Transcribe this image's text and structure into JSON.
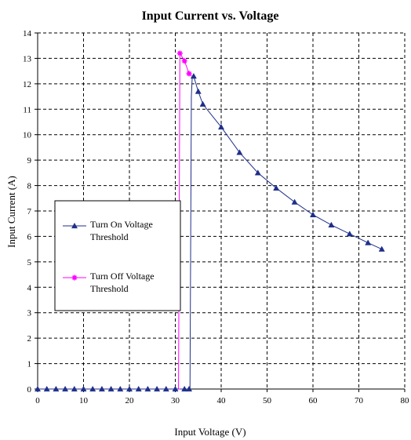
{
  "chart_data": {
    "type": "line",
    "title": "Input Current vs. Voltage",
    "xlabel": "Input Voltage (V)",
    "ylabel": "Input Current (A)",
    "xlim": [
      0,
      80
    ],
    "ylim": [
      0,
      14
    ],
    "x_ticks": [
      0,
      10,
      20,
      30,
      40,
      50,
      60,
      70,
      80
    ],
    "y_ticks": [
      0,
      1,
      2,
      3,
      4,
      5,
      6,
      7,
      8,
      9,
      10,
      11,
      12,
      13,
      14
    ],
    "grid": true,
    "legend_position": "left-middle",
    "series": [
      {
        "name": "Turn On Voltage Threshold",
        "legend_lines": [
          "Turn On Voltage",
          "Threshold"
        ],
        "color": "#1f2f8a",
        "marker": "triangle",
        "x": [
          0,
          2,
          4,
          6,
          8,
          10,
          12,
          14,
          16,
          18,
          20,
          22,
          24,
          26,
          28,
          30,
          31,
          32,
          33,
          33.2,
          33.5,
          33.7,
          34,
          35,
          36,
          40,
          44,
          48,
          52,
          56,
          60,
          64,
          68,
          72,
          75
        ],
        "y": [
          0,
          0,
          0,
          0,
          0,
          0,
          0,
          0,
          0,
          0,
          0,
          0,
          0,
          0,
          0,
          0,
          0,
          0,
          0,
          0,
          11.5,
          12.3,
          12.3,
          11.7,
          11.2,
          10.3,
          9.3,
          8.5,
          7.9,
          7.35,
          6.85,
          6.45,
          6.1,
          5.75,
          5.5
        ],
        "marker_x": [
          0,
          2,
          4,
          6,
          8,
          10,
          12,
          14,
          16,
          18,
          20,
          22,
          24,
          26,
          28,
          30,
          32,
          33,
          34,
          35,
          36,
          40,
          44,
          48,
          52,
          56,
          60,
          64,
          68,
          72,
          75
        ],
        "marker_y": [
          0,
          0,
          0,
          0,
          0,
          0,
          0,
          0,
          0,
          0,
          0,
          0,
          0,
          0,
          0,
          0,
          0,
          0,
          12.3,
          11.7,
          11.2,
          10.3,
          9.3,
          8.5,
          7.9,
          7.35,
          6.85,
          6.45,
          6.1,
          5.75,
          5.5
        ]
      },
      {
        "name": "Turn Off Voltage Threshold",
        "legend_lines": [
          "Turn Off Voltage",
          "Threshold"
        ],
        "color": "#ff00ff",
        "marker": "asterisk",
        "x": [
          31,
          30.7,
          31,
          32,
          33,
          33.5
        ],
        "y": [
          0,
          0,
          13.2,
          12.9,
          12.4,
          12.3
        ],
        "marker_x": [
          31,
          32,
          33
        ],
        "marker_y": [
          13.2,
          12.9,
          12.4
        ]
      }
    ]
  }
}
